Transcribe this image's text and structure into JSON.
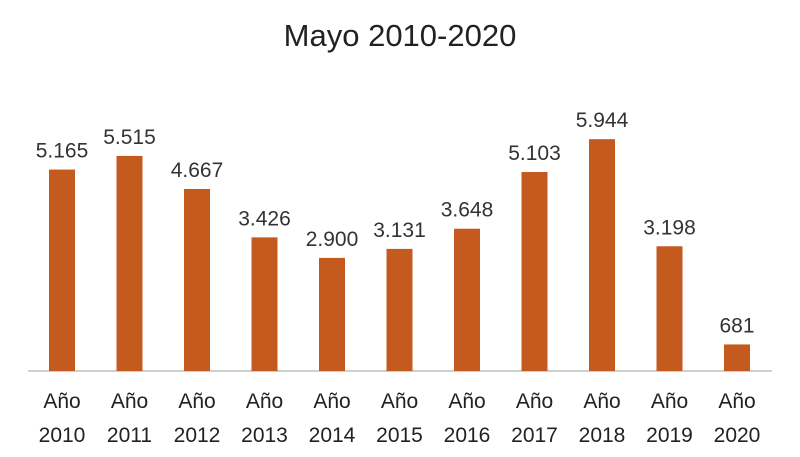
{
  "chart_data": {
    "type": "bar",
    "title": "Mayo 2010-2020",
    "categories": [
      [
        "Año",
        "2010"
      ],
      [
        "Año",
        "2011"
      ],
      [
        "Año",
        "2012"
      ],
      [
        "Año",
        "2013"
      ],
      [
        "Año",
        "2014"
      ],
      [
        "Año",
        "2015"
      ],
      [
        "Año",
        "2016"
      ],
      [
        "Año",
        "2017"
      ],
      [
        "Año",
        "2018"
      ],
      [
        "Año",
        "2019"
      ],
      [
        "Año",
        "2020"
      ]
    ],
    "values": [
      5165,
      5515,
      4667,
      3426,
      2900,
      3131,
      3648,
      5103,
      5944,
      3198,
      681
    ],
    "value_labels": [
      "5.165",
      "5.515",
      "4.667",
      "3.426",
      "2.900",
      "3.131",
      "3.648",
      "5.103",
      "5.944",
      "3.198",
      "681"
    ],
    "xlabel": "",
    "ylabel": "",
    "ylim": [
      0,
      6000
    ],
    "grid": false,
    "legend": "none",
    "colors": {
      "bar": "#C55A1E",
      "axis": "#BFBFBF"
    }
  }
}
